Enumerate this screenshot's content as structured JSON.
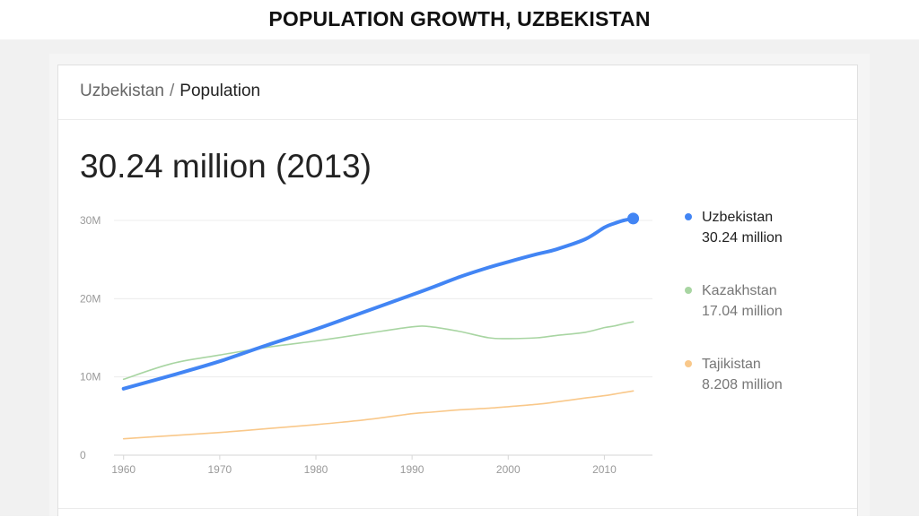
{
  "slide": {
    "title": "POPULATION GROWTH, UZBEKISTAN"
  },
  "card": {
    "breadcrumb_root": "Uzbekistan",
    "breadcrumb_sep": "/",
    "breadcrumb_leaf": "Population",
    "headline": "30.24 million (2013)"
  },
  "colors": {
    "uzbekistan": "#4285f4",
    "kazakhstan": "#a8d5a2",
    "tajikistan": "#f9c88a",
    "grid": "#ececec",
    "tick": "#9a9a9a"
  },
  "chart_data": {
    "type": "line",
    "title": "",
    "xlabel": "",
    "ylabel": "",
    "xlim": [
      1959,
      2015
    ],
    "ylim": [
      0,
      30000000
    ],
    "x_ticks": [
      1960,
      1970,
      1980,
      1990,
      2000,
      2010
    ],
    "y_ticks": [
      {
        "value": 0,
        "label": "0"
      },
      {
        "value": 10000000,
        "label": "10M"
      },
      {
        "value": 20000000,
        "label": "20M"
      },
      {
        "value": 30000000,
        "label": "30M"
      }
    ],
    "grid": true,
    "legend_position": "right",
    "x": [
      1960,
      1965,
      1970,
      1975,
      1980,
      1985,
      1990,
      1992,
      1995,
      1998,
      2000,
      2003,
      2005,
      2008,
      2010,
      2011,
      2012,
      2013
    ],
    "series": [
      {
        "name": "Uzbekistan",
        "legend_value": "30.24 million",
        "color_key": "uzbekistan",
        "values": [
          8500000,
          10200000,
          12000000,
          14100000,
          16100000,
          18300000,
          20500000,
          21400000,
          22800000,
          24000000,
          24700000,
          25700000,
          26300000,
          27600000,
          29100000,
          29600000,
          30000000,
          30240000
        ]
      },
      {
        "name": "Kazakhstan",
        "legend_value": "17.04 million",
        "color_key": "kazakhstan",
        "values": [
          9700000,
          11700000,
          12800000,
          13800000,
          14600000,
          15500000,
          16400000,
          16400000,
          15800000,
          15000000,
          14900000,
          15000000,
          15300000,
          15700000,
          16300000,
          16500000,
          16800000,
          17040000
        ]
      },
      {
        "name": "Tajikistan",
        "legend_value": "8.208 million",
        "color_key": "tajikistan",
        "values": [
          2100000,
          2500000,
          2900000,
          3400000,
          3900000,
          4500000,
          5300000,
          5500000,
          5800000,
          6000000,
          6200000,
          6500000,
          6800000,
          7300000,
          7600000,
          7800000,
          8000000,
          8208000
        ]
      }
    ],
    "end_marker_series": "Uzbekistan"
  }
}
